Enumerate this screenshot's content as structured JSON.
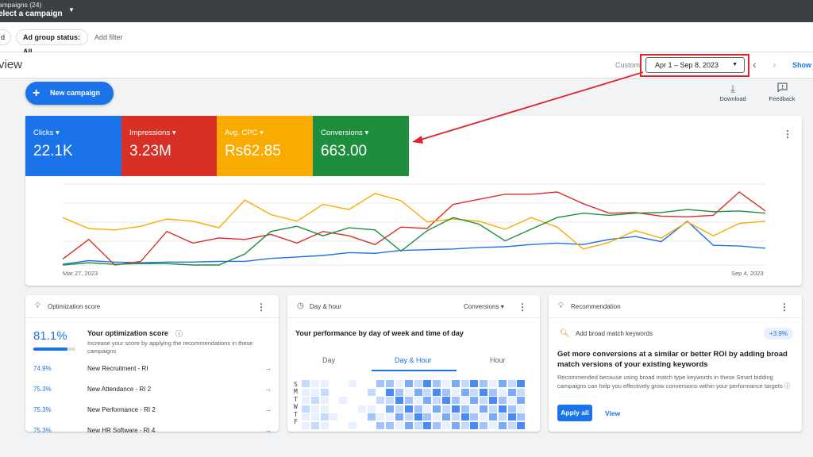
{
  "topbar": {
    "campaigns_label": "ampaigns (24)",
    "select_label": "elect a campaign"
  },
  "filters": {
    "chip1": "d",
    "chip2": "Ad group status: All",
    "add_filter": "Add filter"
  },
  "header": {
    "title": "view",
    "custom_label": "Custom",
    "date_range": "Apr 1 – Sep 8, 2023",
    "show_label": "Show"
  },
  "actions": {
    "new_campaign": "New campaign",
    "download": "Download",
    "feedback": "Feedback"
  },
  "metrics": [
    {
      "label": "Clicks",
      "value": "22.1K",
      "color": "#1a73e8"
    },
    {
      "label": "Impressions",
      "value": "3.23M",
      "color": "#d93025"
    },
    {
      "label": "Avg. CPC",
      "value": "Rs62.85",
      "color": "#f9ab00"
    },
    {
      "label": "Conversions",
      "value": "663.00",
      "color": "#1e8e3e"
    }
  ],
  "chart_data": {
    "type": "line",
    "x_start_label": "Mar 27, 2023",
    "x_end_label": "Sep 4, 2023",
    "grid": true,
    "ylim": [
      0,
      100
    ],
    "series": [
      {
        "metric": "Clicks",
        "color": "#1a73e8",
        "values": [
          1,
          6,
          4,
          3,
          4,
          4,
          5,
          5,
          9,
          11,
          13,
          17,
          16,
          20,
          21,
          22,
          24,
          25,
          28,
          30,
          28,
          35,
          39,
          32,
          60,
          27,
          26,
          23
        ]
      },
      {
        "metric": "Impressions",
        "color": "#d93025",
        "values": [
          8,
          35,
          0,
          5,
          46,
          30,
          37,
          35,
          42,
          30,
          46,
          40,
          28,
          52,
          50,
          83,
          90,
          97,
          97,
          100,
          84,
          71,
          72,
          67,
          66,
          68,
          100,
          74
        ]
      },
      {
        "metric": "Avg. CPC",
        "color": "#f9ab00",
        "values": [
          65,
          50,
          48,
          53,
          63,
          60,
          51,
          89,
          69,
          60,
          83,
          76,
          98,
          88,
          59,
          63,
          60,
          49,
          65,
          52,
          22,
          31,
          47,
          37,
          59,
          40,
          57,
          60
        ]
      },
      {
        "metric": "Conversions",
        "color": "#1e8e3e",
        "values": [
          0,
          3,
          1,
          2,
          2,
          0,
          0,
          15,
          46,
          53,
          40,
          51,
          48,
          19,
          47,
          65,
          56,
          33,
          49,
          65,
          71,
          68,
          71,
          72,
          76,
          73,
          74,
          71
        ]
      }
    ]
  },
  "optimization": {
    "title": "Optimization score",
    "score": "81.1%",
    "score_fraction": 0.811,
    "heading": "Your optimization score",
    "description": "Increase your score by applying the recommendations in these campaigns",
    "rows": [
      {
        "pct": "74.9%",
        "name": "New Recruitment - RI"
      },
      {
        "pct": "75.3%",
        "name": "New Attendance - RI 2"
      },
      {
        "pct": "75.3%",
        "name": "New Performance - RI 2"
      },
      {
        "pct": "75.3%",
        "name": "New HR Software - RI 4"
      }
    ]
  },
  "day_hour": {
    "title": "Day & hour",
    "select": "Conversions",
    "subtitle": "Your performance by day of week and time of day",
    "tabs": [
      "Day",
      "Day & Hour",
      "Hour"
    ],
    "days": [
      "S",
      "M",
      "T",
      "W",
      "T",
      "F"
    ]
  },
  "recommendation": {
    "title": "Recommendation",
    "keyword_label": "Add broad match keywords",
    "uplift": "+3.9%",
    "heading": "Get more conversions at a similar or better ROI by adding broad match versions of your existing keywords",
    "description": "Recommended because using broad match type keywords in these Smart bidding campaigns can help you effectively grow conversions within your performance targets",
    "apply": "Apply all",
    "view": "View"
  }
}
